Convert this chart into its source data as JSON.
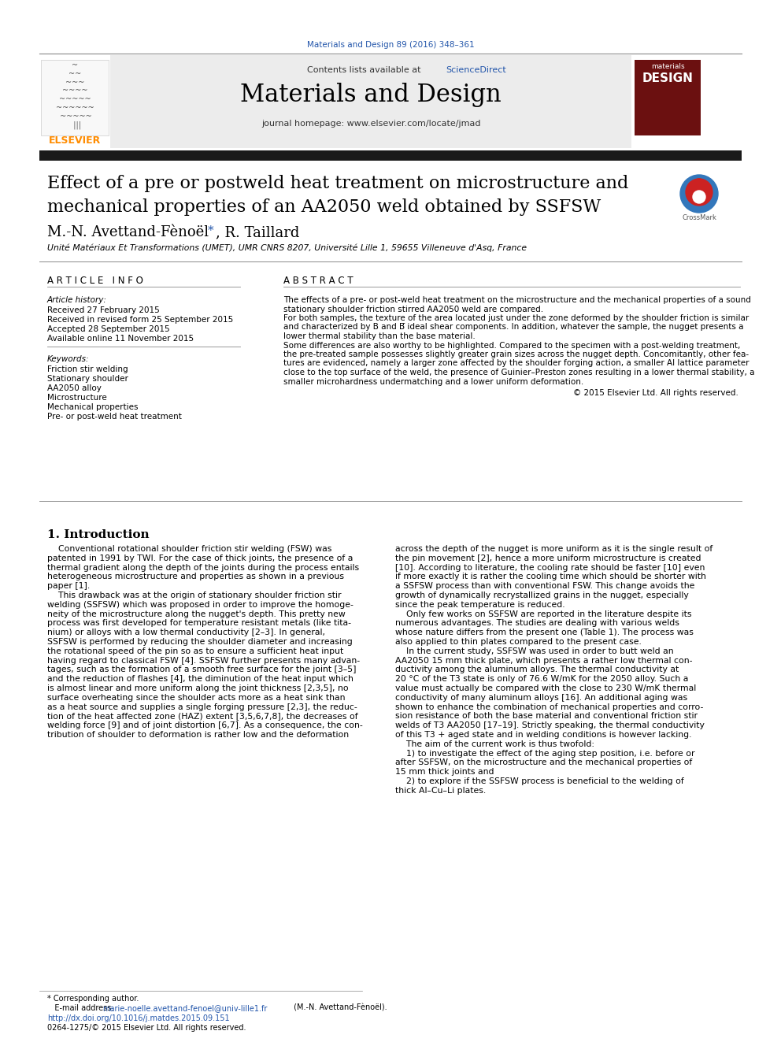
{
  "page_citation": "Materials and Design 89 (2016) 348–361",
  "journal_name": "Materials and Design",
  "journal_homepage": "journal homepage: www.elsevier.com/locate/jmad",
  "contents_line": "Contents lists available at ScienceDirect",
  "title_line1": "Effect of a pre or postweld heat treatment on microstructure and",
  "title_line2": "mechanical properties of an AA2050 weld obtained by SSFSW",
  "authors_pre": "M.-N. Avettand-Fènoël ",
  "authors_post": ", R. Taillard",
  "affiliation": "Unité Matériaux Et Transformations (UMET), UMR CNRS 8207, Université Lille 1, 59655 Villeneuve d'Asq, France",
  "article_info_header": "A R T I C L E   I N F O",
  "abstract_header": "A B S T R A C T",
  "article_history_label": "Article history:",
  "received1": "Received 27 February 2015",
  "received2": "Received in revised form 25 September 2015",
  "accepted": "Accepted 28 September 2015",
  "available": "Available online 11 November 2015",
  "keywords_label": "Keywords:",
  "keywords": [
    "Friction stir welding",
    "Stationary shoulder",
    "AA2050 alloy",
    "Microstructure",
    "Mechanical properties",
    "Pre- or post-weld heat treatment"
  ],
  "abstract_lines": [
    "The effects of a pre- or post-weld heat treatment on the microstructure and the mechanical properties of a sound",
    "stationary shoulder friction stirred AA2050 weld are compared.",
    "For both samples, the texture of the area located just under the zone deformed by the shoulder friction is similar",
    "and characterized by B and B̅ ideal shear components. In addition, whatever the sample, the nugget presents a",
    "lower thermal stability than the base material.",
    "Some differences are also worthy to be highlighted. Compared to the specimen with a post-welding treatment,",
    "the pre-treated sample possesses slightly greater grain sizes across the nugget depth. Concomitantly, other fea-",
    "tures are evidenced, namely a larger zone affected by the shoulder forging action, a smaller Al lattice parameter",
    "close to the top surface of the weld, the presence of Guinier–Preston zones resulting in a lower thermal stability, a",
    "smaller microhardness undermatching and a lower uniform deformation."
  ],
  "copyright_line": "© 2015 Elsevier Ltd. All rights reserved.",
  "intro_header": "1. Introduction",
  "left_col_text": [
    "    Conventional rotational shoulder friction stir welding (FSW) was",
    "patented in 1991 by TWI. For the case of thick joints, the presence of a",
    "thermal gradient along the depth of the joints during the process entails",
    "heterogeneous microstructure and properties as shown in a previous",
    "paper [1].",
    "    This drawback was at the origin of stationary shoulder friction stir",
    "welding (SSFSW) which was proposed in order to improve the homoge-",
    "neity of the microstructure along the nugget's depth. This pretty new",
    "process was first developed for temperature resistant metals (like tita-",
    "nium) or alloys with a low thermal conductivity [2–3]. In general,",
    "SSFSW is performed by reducing the shoulder diameter and increasing",
    "the rotational speed of the pin so as to ensure a sufficient heat input",
    "having regard to classical FSW [4]. SSFSW further presents many advan-",
    "tages, such as the formation of a smooth free surface for the joint [3–5]",
    "and the reduction of flashes [4], the diminution of the heat input which",
    "is almost linear and more uniform along the joint thickness [2,3,5], no",
    "surface overheating since the shoulder acts more as a heat sink than",
    "as a heat source and supplies a single forging pressure [2,3], the reduc-",
    "tion of the heat affected zone (HAZ) extent [3,5,6,7,8], the decreases of",
    "welding force [9] and of joint distortion [6,7]. As a consequence, the con-",
    "tribution of shoulder to deformation is rather low and the deformation"
  ],
  "right_col_text": [
    "across the depth of the nugget is more uniform as it is the single result of",
    "the pin movement [2], hence a more uniform microstructure is created",
    "[10]. According to literature, the cooling rate should be faster [10] even",
    "if more exactly it is rather the cooling time which should be shorter with",
    "a SSFSW process than with conventional FSW. This change avoids the",
    "growth of dynamically recrystallized grains in the nugget, especially",
    "since the peak temperature is reduced.",
    "    Only few works on SSFSW are reported in the literature despite its",
    "numerous advantages. The studies are dealing with various welds",
    "whose nature differs from the present one (Table 1). The process was",
    "also applied to thin plates compared to the present case.",
    "    In the current study, SSFSW was used in order to butt weld an",
    "AA2050 15 mm thick plate, which presents a rather low thermal con-",
    "ductivity among the aluminum alloys. The thermal conductivity at",
    "20 °C of the T3 state is only of 76.6 W/mK for the 2050 alloy. Such a",
    "value must actually be compared with the close to 230 W/mK thermal",
    "conductivity of many aluminum alloys [16]. An additional aging was",
    "shown to enhance the combination of mechanical properties and corro-",
    "sion resistance of both the base material and conventional friction stir",
    "welds of T3 AA2050 [17–19]. Strictly speaking, the thermal conductivity",
    "of this T3 + aged state and in welding conditions is however lacking.",
    "    The aim of the current work is thus twofold:",
    "    1) to investigate the effect of the aging step position, i.e. before or",
    "after SSFSW, on the microstructure and the mechanical properties of",
    "15 mm thick joints and",
    "    2) to explore if the SSFSW process is beneficial to the welding of",
    "thick Al–Cu–Li plates."
  ],
  "footer_star": "* Corresponding author.",
  "footer_email_label": "   E-mail address: ",
  "footer_email": "marie-noelle.avettand-fenoel@univ-lille1.fr",
  "footer_email_suffix": " (M.-N. Avettand-Fènoël).",
  "doi_line": "http://dx.doi.org/10.1016/j.matdes.2015.09.151",
  "issn_line": "0264-1275/© 2015 Elsevier Ltd. All rights reserved.",
  "bg_color": "#ffffff",
  "header_bg": "#ececec",
  "blue_link": "#2255aa",
  "orange_text": "#FF8C00",
  "gray_line": "#888888",
  "dark_bar": "#1a1a1a"
}
